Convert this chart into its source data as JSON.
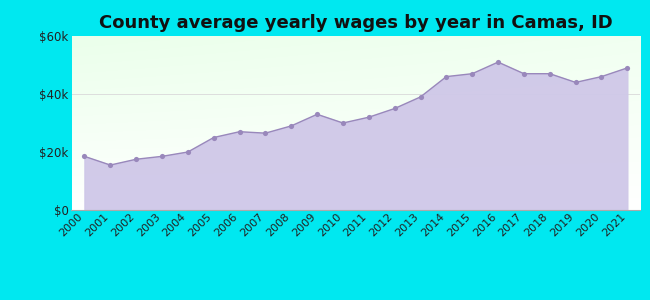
{
  "title": "County average yearly wages by year in Camas, ID",
  "years": [
    2000,
    2001,
    2002,
    2003,
    2004,
    2005,
    2006,
    2007,
    2008,
    2009,
    2010,
    2011,
    2012,
    2013,
    2014,
    2015,
    2016,
    2017,
    2018,
    2019,
    2020,
    2021
  ],
  "values": [
    18500,
    15500,
    17500,
    18500,
    20000,
    25000,
    27000,
    26500,
    29000,
    33000,
    30000,
    32000,
    35000,
    39000,
    46000,
    47000,
    51000,
    47000,
    47000,
    44000,
    46000,
    49000
  ],
  "ylim": [
    0,
    60000
  ],
  "yticks": [
    0,
    20000,
    40000,
    60000
  ],
  "ytick_labels": [
    "$0",
    "$20k",
    "$40k",
    "$60k"
  ],
  "fill_color": "#cfc8e8",
  "dot_color": "#9988bb",
  "background_outer": "#00e8f0",
  "grid_color": "#dddddd",
  "title_fontsize": 13,
  "tick_fontsize": 8.5
}
